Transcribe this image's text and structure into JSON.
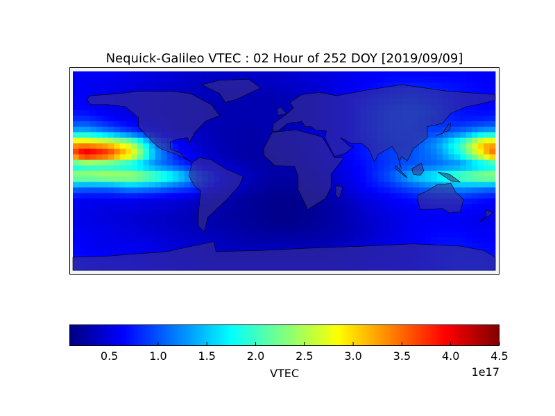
{
  "chart_data": {
    "type": "heatmap",
    "title": "Nequick-Galileo VTEC : 02 Hour of 252 DOY [2019/09/09]",
    "projection": "equirectangular world map with coastlines and country borders",
    "grid": false,
    "lon_range": [
      -180,
      180
    ],
    "lat_range": [
      -90,
      90
    ],
    "grid_lon_centers": [
      -170,
      -150,
      -130,
      -110,
      -90,
      -70,
      -50,
      -30,
      -10,
      10,
      30,
      50,
      70,
      90,
      110,
      130,
      150,
      170
    ],
    "grid_lat_centers": [
      85,
      75,
      65,
      55,
      45,
      35,
      25,
      15,
      5,
      -5,
      -15,
      -25,
      -35,
      -45,
      -55,
      -65,
      -75,
      -85
    ],
    "values_unit": "1e17",
    "values": [
      [
        0.6,
        0.6,
        0.55,
        0.5,
        0.45,
        0.4,
        0.4,
        0.4,
        0.4,
        0.45,
        0.5,
        0.55,
        0.6,
        0.65,
        0.65,
        0.65,
        0.65,
        0.6
      ],
      [
        0.6,
        0.55,
        0.5,
        0.45,
        0.4,
        0.35,
        0.35,
        0.35,
        0.35,
        0.4,
        0.45,
        0.55,
        0.65,
        0.75,
        0.8,
        0.75,
        0.7,
        0.65
      ],
      [
        0.6,
        0.55,
        0.5,
        0.45,
        0.4,
        0.35,
        0.3,
        0.3,
        0.3,
        0.35,
        0.45,
        0.6,
        0.75,
        0.85,
        0.9,
        0.8,
        0.7,
        0.65
      ],
      [
        0.65,
        0.55,
        0.5,
        0.45,
        0.4,
        0.35,
        0.3,
        0.3,
        0.3,
        0.35,
        0.45,
        0.6,
        0.8,
        0.95,
        1.0,
        0.9,
        0.7,
        0.65
      ],
      [
        0.9,
        0.7,
        0.55,
        0.5,
        0.4,
        0.35,
        0.3,
        0.3,
        0.3,
        0.35,
        0.45,
        0.6,
        0.8,
        0.95,
        1.0,
        0.85,
        0.75,
        0.8
      ],
      [
        1.5,
        1.2,
        0.9,
        0.6,
        0.45,
        0.35,
        0.3,
        0.25,
        0.3,
        0.35,
        0.45,
        0.6,
        0.8,
        0.95,
        0.95,
        0.9,
        1.1,
        1.4
      ],
      [
        3.2,
        3.0,
        2.5,
        1.2,
        0.6,
        0.4,
        0.3,
        0.25,
        0.3,
        0.35,
        0.45,
        0.6,
        0.75,
        0.9,
        0.95,
        1.3,
        2.0,
        3.2
      ],
      [
        4.3,
        3.9,
        3.0,
        1.4,
        0.7,
        0.45,
        0.3,
        0.25,
        0.25,
        0.3,
        0.45,
        0.6,
        0.75,
        0.9,
        1.0,
        1.2,
        1.8,
        3.0
      ],
      [
        1.8,
        1.8,
        1.6,
        1.2,
        0.9,
        0.6,
        0.4,
        0.3,
        0.25,
        0.3,
        0.4,
        0.55,
        0.7,
        0.9,
        1.0,
        1.1,
        1.2,
        1.5
      ],
      [
        2.5,
        2.6,
        2.6,
        2.2,
        1.7,
        1.0,
        0.6,
        0.35,
        0.25,
        0.25,
        0.35,
        0.5,
        0.7,
        1.0,
        1.5,
        1.8,
        2.2,
        2.5
      ],
      [
        1.1,
        1.1,
        1.3,
        1.2,
        1.0,
        0.8,
        0.5,
        0.3,
        0.2,
        0.2,
        0.3,
        0.45,
        0.65,
        0.8,
        1.0,
        1.2,
        1.3,
        1.2
      ],
      [
        0.6,
        0.6,
        0.6,
        0.55,
        0.5,
        0.4,
        0.3,
        0.2,
        0.15,
        0.15,
        0.2,
        0.35,
        0.5,
        0.6,
        0.7,
        0.8,
        0.8,
        0.7
      ],
      [
        0.55,
        0.5,
        0.5,
        0.45,
        0.4,
        0.3,
        0.25,
        0.2,
        0.15,
        0.15,
        0.2,
        0.3,
        0.45,
        0.55,
        0.6,
        0.65,
        0.65,
        0.6
      ],
      [
        0.55,
        0.5,
        0.45,
        0.4,
        0.35,
        0.3,
        0.25,
        0.2,
        0.15,
        0.15,
        0.2,
        0.3,
        0.4,
        0.5,
        0.6,
        0.6,
        0.6,
        0.55
      ],
      [
        0.6,
        0.55,
        0.5,
        0.45,
        0.4,
        0.35,
        0.3,
        0.25,
        0.2,
        0.2,
        0.25,
        0.3,
        0.4,
        0.5,
        0.6,
        0.65,
        0.65,
        0.6
      ],
      [
        0.6,
        0.55,
        0.55,
        0.5,
        0.45,
        0.4,
        0.35,
        0.3,
        0.3,
        0.3,
        0.3,
        0.35,
        0.45,
        0.55,
        0.6,
        0.7,
        0.7,
        0.65
      ],
      [
        0.65,
        0.6,
        0.6,
        0.55,
        0.5,
        0.45,
        0.4,
        0.4,
        0.4,
        0.4,
        0.4,
        0.45,
        0.5,
        0.55,
        0.6,
        0.7,
        0.75,
        0.7
      ],
      [
        0.7,
        0.65,
        0.65,
        0.6,
        0.55,
        0.5,
        0.5,
        0.5,
        0.5,
        0.5,
        0.5,
        0.5,
        0.55,
        0.6,
        0.65,
        0.7,
        0.75,
        0.75
      ]
    ],
    "colormap": "jet",
    "colorbar": {
      "label": "VTEC",
      "range": [
        0.09,
        4.5
      ],
      "ticks": [
        "0.5",
        "1.0",
        "1.5",
        "2.0",
        "2.5",
        "3.0",
        "3.5",
        "4.0",
        "4.5"
      ],
      "offset_text": "1e17",
      "orientation": "horizontal",
      "placement": "bottom"
    },
    "colors": {
      "land_tint": "#3c328c",
      "coastline": "#000000"
    }
  }
}
